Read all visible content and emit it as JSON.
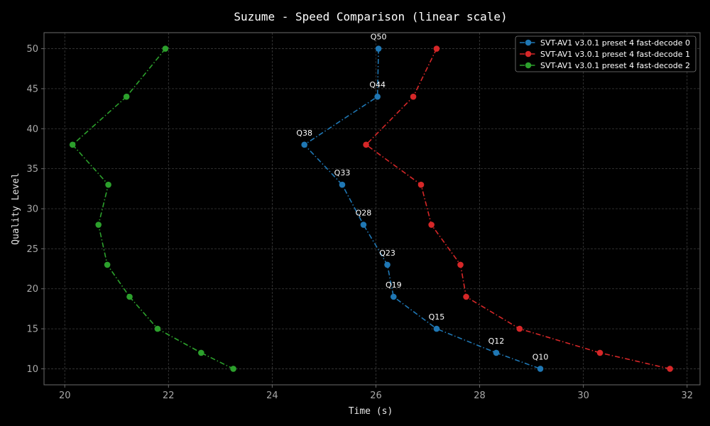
{
  "chart_data": {
    "type": "line",
    "title": "Suzume - Speed Comparison (linear scale)",
    "xlabel": "Time (s)",
    "ylabel": "Quality Level",
    "xlim": [
      19.6,
      32.25
    ],
    "ylim": [
      8,
      52
    ],
    "xticks": [
      "20",
      "22",
      "24",
      "26",
      "28",
      "30",
      "32"
    ],
    "yticks": [
      "10",
      "15",
      "20",
      "25",
      "30",
      "35",
      "40",
      "45",
      "50"
    ],
    "grid": true,
    "legend_position": "top-right",
    "series": [
      {
        "name": "SVT-AV1 v3.0.1 preset 4 fast-decode 0",
        "color": "#1f77b4",
        "points": [
          {
            "x": 26.05,
            "y": 50
          },
          {
            "x": 26.03,
            "y": 44
          },
          {
            "x": 24.62,
            "y": 38
          },
          {
            "x": 25.35,
            "y": 33
          },
          {
            "x": 25.76,
            "y": 28
          },
          {
            "x": 26.22,
            "y": 23
          },
          {
            "x": 26.34,
            "y": 19
          },
          {
            "x": 27.17,
            "y": 15
          },
          {
            "x": 28.32,
            "y": 12
          },
          {
            "x": 29.17,
            "y": 10
          }
        ]
      },
      {
        "name": "SVT-AV1 v3.0.1 preset 4 fast-decode 1",
        "color": "#d62728",
        "points": [
          {
            "x": 27.17,
            "y": 50
          },
          {
            "x": 26.72,
            "y": 44
          },
          {
            "x": 25.81,
            "y": 38
          },
          {
            "x": 26.87,
            "y": 33
          },
          {
            "x": 27.07,
            "y": 28
          },
          {
            "x": 27.63,
            "y": 23
          },
          {
            "x": 27.74,
            "y": 19
          },
          {
            "x": 28.77,
            "y": 15
          },
          {
            "x": 30.32,
            "y": 12
          },
          {
            "x": 31.67,
            "y": 10
          }
        ]
      },
      {
        "name": "SVT-AV1 v3.0.1 preset 4 fast-decode 2",
        "color": "#2ca02c",
        "points": [
          {
            "x": 21.94,
            "y": 50
          },
          {
            "x": 21.19,
            "y": 44
          },
          {
            "x": 20.15,
            "y": 38
          },
          {
            "x": 20.84,
            "y": 33
          },
          {
            "x": 20.65,
            "y": 28
          },
          {
            "x": 20.82,
            "y": 23
          },
          {
            "x": 21.25,
            "y": 19
          },
          {
            "x": 21.79,
            "y": 15
          },
          {
            "x": 22.63,
            "y": 12
          },
          {
            "x": 23.25,
            "y": 10
          }
        ]
      }
    ],
    "annotations": [
      {
        "text": "Q50",
        "x": 26.05,
        "y": 50
      },
      {
        "text": "Q44",
        "x": 26.03,
        "y": 44
      },
      {
        "text": "Q38",
        "x": 24.62,
        "y": 38
      },
      {
        "text": "Q33",
        "x": 25.35,
        "y": 33
      },
      {
        "text": "Q28",
        "x": 25.76,
        "y": 28
      },
      {
        "text": "Q23",
        "x": 26.22,
        "y": 23
      },
      {
        "text": "Q19",
        "x": 26.34,
        "y": 19
      },
      {
        "text": "Q15",
        "x": 27.17,
        "y": 15
      },
      {
        "text": "Q12",
        "x": 28.32,
        "y": 12
      },
      {
        "text": "Q10",
        "x": 29.17,
        "y": 10
      }
    ],
    "colors": {
      "background": "#000000",
      "axes_frame": "#6b6b6b",
      "grid": "#3c3c3c"
    }
  }
}
